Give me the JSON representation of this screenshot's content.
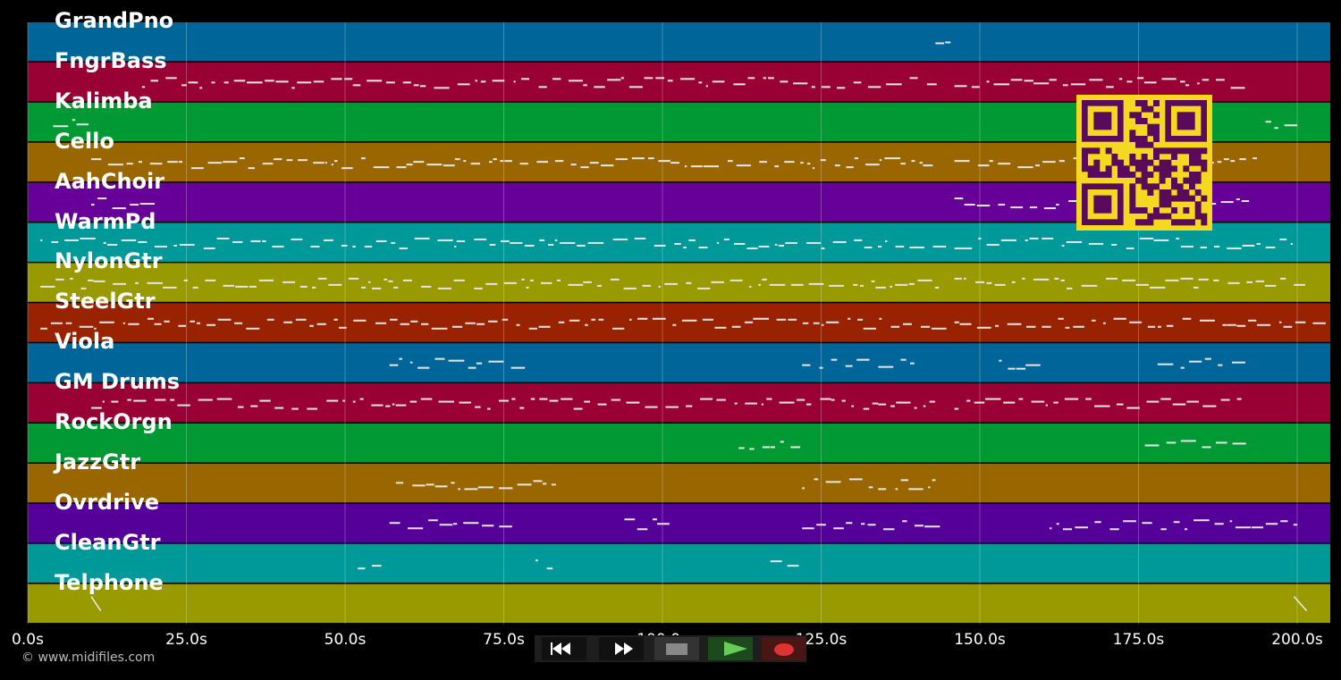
{
  "tracks": [
    {
      "name": "GrandPno",
      "color": "#006699"
    },
    {
      "name": "FngrBass",
      "color": "#990033"
    },
    {
      "name": "Kalimba",
      "color": "#009933"
    },
    {
      "name": "Cello",
      "color": "#996600"
    },
    {
      "name": "AahChoir",
      "color": "#660099"
    },
    {
      "name": "WarmPd",
      "color": "#009999"
    },
    {
      "name": "NylonGtr",
      "color": "#999900"
    },
    {
      "name": "SteelGtr",
      "color": "#992200"
    },
    {
      "name": "Viola",
      "color": "#006699"
    },
    {
      "name": "GM Drums",
      "color": "#990033"
    },
    {
      "name": "RockOrgn",
      "color": "#009933"
    },
    {
      "name": "JazzGtr",
      "color": "#996600"
    },
    {
      "name": "Ovrdrive",
      "color": "#550099"
    },
    {
      "name": "CleanGtr",
      "color": "#009999"
    },
    {
      "name": "Telphone",
      "color": "#999900"
    }
  ],
  "time_axis": {
    "unit": "s",
    "max": 205,
    "ticks": [
      {
        "value": 0,
        "label": "0.0s"
      },
      {
        "value": 25,
        "label": "25.0s"
      },
      {
        "value": 50,
        "label": "50.0s"
      },
      {
        "value": 75,
        "label": "75.0s"
      },
      {
        "value": 100,
        "label": "100.0s"
      },
      {
        "value": 125,
        "label": "125.0s"
      },
      {
        "value": 150,
        "label": "150.0s"
      },
      {
        "value": 175,
        "label": "175.0s"
      },
      {
        "value": 200,
        "label": "200.0s"
      }
    ]
  },
  "transport": {
    "buttons": [
      {
        "name": "rewind-button",
        "icon": "rewind-icon"
      },
      {
        "name": "fast-forward-button",
        "icon": "fast-forward-icon"
      },
      {
        "name": "stop-button",
        "icon": "stop-icon"
      },
      {
        "name": "play-button",
        "icon": "play-icon"
      },
      {
        "name": "record-button",
        "icon": "record-icon"
      }
    ]
  },
  "copyright": "© www.midifiles.com",
  "qr_code": {
    "icon": "qr-code-icon",
    "fg": "#5a0a5a",
    "bg": "#f5d820"
  },
  "colors": {
    "background": "#000000",
    "notes": "#e6e6e6"
  }
}
